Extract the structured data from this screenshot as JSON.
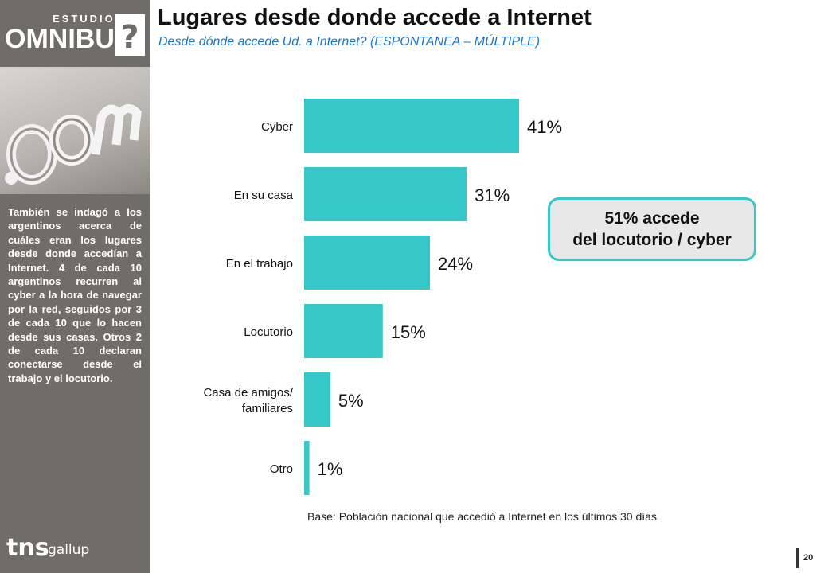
{
  "brand": {
    "top": "ESTUDIOS",
    "main": "OMNIBUS",
    "mark": "?"
  },
  "title": "Lugares desde donde accede a Internet",
  "subtitle": "Desde dónde accede Ud. a Internet? (ESPONTANEA – MÚLTIPLE)",
  "side_text": "También se indagó a los argentinos acerca de cuáles eran los lugares desde donde accedían a Internet. 4 de cada 10 argentinos recurren al cyber a la hora de navegar por la red, seguidos por 3 de cada 10 que lo hacen desde sus casas. Otros 2 de cada 10 declaran conectarse desde el trabajo y el locutorio.",
  "callout": {
    "line1": "51% accede",
    "line2": "del locutorio / cyber"
  },
  "footnote": "Base: Población nacional que accedió a Internet en los últimos 30 días",
  "page_number": "20",
  "tns_logo": {
    "tns": "tns",
    "gallup": "gallup"
  },
  "chart_data": {
    "type": "bar",
    "orientation": "horizontal",
    "categories": [
      "Cyber",
      "En su casa",
      "En el trabajo",
      "Locutorio",
      "Casa de amigos/ familiares",
      "Otro"
    ],
    "category_lines": [
      [
        "Cyber"
      ],
      [
        "En su casa"
      ],
      [
        "En el trabajo"
      ],
      [
        "Locutorio"
      ],
      [
        "Casa de amigos/",
        "familiares"
      ],
      [
        "Otro"
      ]
    ],
    "values": [
      41,
      31,
      24,
      15,
      5,
      1
    ],
    "value_labels": [
      "41%",
      "31%",
      "24%",
      "15%",
      "5%",
      "1%"
    ],
    "unit": "%",
    "bar_color": "#36c8c8",
    "grid": false
  }
}
